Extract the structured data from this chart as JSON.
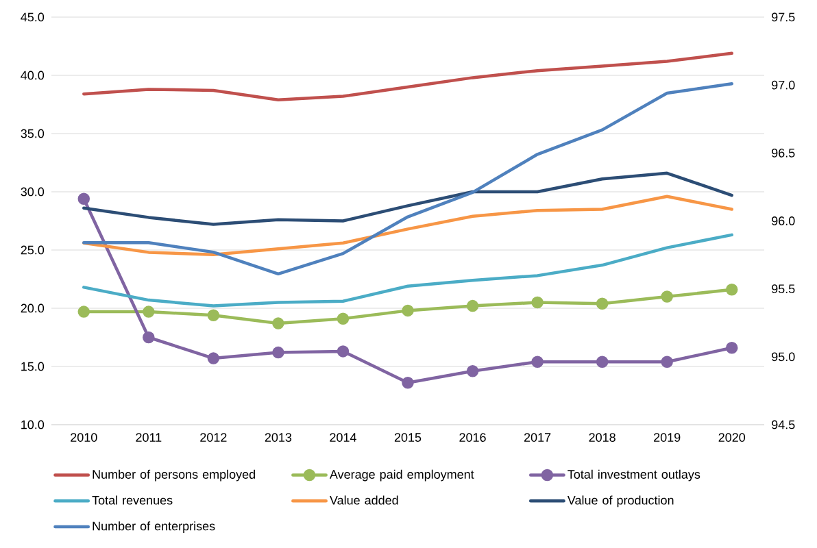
{
  "chart_data": {
    "type": "line",
    "categories": [
      "2010",
      "2011",
      "2012",
      "2013",
      "2014",
      "2015",
      "2016",
      "2017",
      "2018",
      "2019",
      "2020"
    ],
    "series": [
      {
        "name": "Number of persons employed",
        "color": "#c0504d",
        "marker": "none",
        "values": [
          38.4,
          38.8,
          38.7,
          37.9,
          38.2,
          39.0,
          39.8,
          40.4,
          40.8,
          41.2,
          41.9
        ]
      },
      {
        "name": "Average paid employment",
        "color": "#9bbb59",
        "marker": "circle",
        "values": [
          19.7,
          19.7,
          19.4,
          18.7,
          19.1,
          19.8,
          20.2,
          20.5,
          20.4,
          21.0,
          21.6
        ]
      },
      {
        "name": "Total investment outlays",
        "color": "#8064a2",
        "marker": "circle",
        "values": [
          29.4,
          17.5,
          15.7,
          16.2,
          16.3,
          13.6,
          14.6,
          15.4,
          15.4,
          15.4,
          16.6
        ]
      },
      {
        "name": "Total revenues",
        "color": "#4bacc6",
        "marker": "none",
        "values": [
          21.8,
          20.7,
          20.2,
          20.5,
          20.6,
          21.9,
          22.4,
          22.8,
          23.7,
          25.2,
          26.3
        ]
      },
      {
        "name": "Value added",
        "color": "#f79646",
        "marker": "none",
        "values": [
          25.6,
          24.8,
          24.6,
          25.1,
          25.6,
          26.8,
          27.9,
          28.4,
          28.5,
          29.6,
          28.5
        ]
      },
      {
        "name": "Value of production",
        "color": "#2c4d75",
        "marker": "none",
        "values": [
          28.6,
          27.8,
          27.2,
          27.6,
          27.5,
          28.8,
          30.0,
          30.0,
          31.1,
          31.6,
          29.7
        ]
      },
      {
        "name": "Number of enterprises",
        "color": "#4f81bd",
        "marker": "none",
        "axis": "y2",
        "values": [
          95.84,
          95.84,
          95.77,
          95.61,
          95.76,
          96.03,
          96.21,
          96.49,
          96.67,
          96.94,
          97.01
        ]
      }
    ],
    "ylim": [
      10,
      45
    ],
    "yticks": [
      {
        "value": 10,
        "label": "10.0"
      },
      {
        "value": 15,
        "label": "15.0"
      },
      {
        "value": 20,
        "label": "20.0"
      },
      {
        "value": 25,
        "label": "25.0"
      },
      {
        "value": 30,
        "label": "30.0"
      },
      {
        "value": 35,
        "label": "35.0"
      },
      {
        "value": 40,
        "label": "40.0"
      },
      {
        "value": 45,
        "label": "45.0"
      }
    ],
    "y2lim": [
      94.5,
      97.5
    ],
    "y2ticks": [
      {
        "value": 94.5,
        "label": "94.5"
      },
      {
        "value": 95.0,
        "label": "95.0"
      },
      {
        "value": 95.5,
        "label": "95.5"
      },
      {
        "value": 96.0,
        "label": "96.0"
      },
      {
        "value": 96.5,
        "label": "96.5"
      },
      {
        "value": 97.0,
        "label": "97.0"
      },
      {
        "value": 97.5,
        "label": "97.5"
      }
    ],
    "grid": "y",
    "legend": "bottom",
    "line_style": "solid"
  }
}
